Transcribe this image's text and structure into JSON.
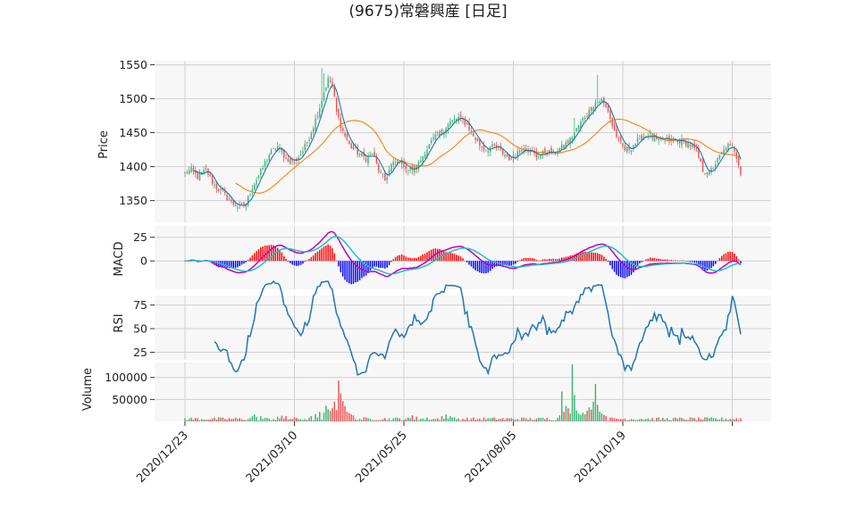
{
  "chart_data": {
    "type": "candlestick",
    "title": "(9675)常磐興産 [日足]",
    "x_tick_labels": [
      "2020/12/23",
      "2021/03/10",
      "2021/05/25",
      "2021/08/05",
      "2021/10/19"
    ],
    "colors": {
      "up": "#3cb371",
      "down": "#ef5350",
      "ma_short": "#1f77b4",
      "ma_long": "#ff7f0e",
      "macd": "#c000c0",
      "signal": "#20c0c0",
      "hist_pos": "#ff0000",
      "hist_neg": "#0000ff",
      "rsi": "#1f77b4",
      "panel_bg": "#f7f7f7",
      "grid": "#d0d0d0"
    },
    "panels": {
      "price": {
        "ylabel": "Price",
        "ylim": [
          1318,
          1556
        ],
        "yticks": [
          1350,
          1400,
          1450,
          1500,
          1550
        ],
        "ma_short_series": "5-day moving average",
        "ma_long_series": "25-day moving average",
        "keypoints": [
          [
            0,
            1390
          ],
          [
            3,
            1395
          ],
          [
            6,
            1385
          ],
          [
            10,
            1395
          ],
          [
            14,
            1372
          ],
          [
            18,
            1362
          ],
          [
            22,
            1347
          ],
          [
            26,
            1340
          ],
          [
            29,
            1346
          ],
          [
            32,
            1370
          ],
          [
            36,
            1392
          ],
          [
            40,
            1418
          ],
          [
            44,
            1430
          ],
          [
            48,
            1412
          ],
          [
            52,
            1408
          ],
          [
            55,
            1418
          ],
          [
            58,
            1435
          ],
          [
            61,
            1460
          ],
          [
            64,
            1488
          ],
          [
            66,
            1510
          ],
          [
            68,
            1528
          ],
          [
            70,
            1520
          ],
          [
            72,
            1480
          ],
          [
            75,
            1452
          ],
          [
            78,
            1432
          ],
          [
            82,
            1420
          ],
          [
            86,
            1412
          ],
          [
            89,
            1420
          ],
          [
            92,
            1395
          ],
          [
            95,
            1380
          ],
          [
            98,
            1402
          ],
          [
            102,
            1410
          ],
          [
            106,
            1395
          ],
          [
            110,
            1398
          ],
          [
            114,
            1422
          ],
          [
            118,
            1440
          ],
          [
            122,
            1452
          ],
          [
            126,
            1465
          ],
          [
            130,
            1472
          ],
          [
            134,
            1462
          ],
          [
            137,
            1445
          ],
          [
            140,
            1432
          ],
          [
            143,
            1425
          ],
          [
            147,
            1430
          ],
          [
            151,
            1420
          ],
          [
            155,
            1410
          ],
          [
            158,
            1422
          ],
          [
            161,
            1430
          ],
          [
            164,
            1422
          ],
          [
            167,
            1415
          ],
          [
            171,
            1422
          ],
          [
            175,
            1420
          ],
          [
            179,
            1428
          ],
          [
            183,
            1440
          ],
          [
            186,
            1455
          ],
          [
            189,
            1470
          ],
          [
            192,
            1482
          ],
          [
            195,
            1495
          ],
          [
            198,
            1498
          ],
          [
            201,
            1482
          ],
          [
            203,
            1460
          ],
          [
            206,
            1438
          ],
          [
            209,
            1425
          ],
          [
            212,
            1428
          ],
          [
            216,
            1442
          ],
          [
            220,
            1448
          ],
          [
            224,
            1438
          ],
          [
            228,
            1440
          ],
          [
            232,
            1438
          ],
          [
            236,
            1438
          ],
          [
            240,
            1432
          ],
          [
            243,
            1422
          ],
          [
            246,
            1395
          ],
          [
            249,
            1390
          ],
          [
            252,
            1405
          ],
          [
            255,
            1420
          ],
          [
            258,
            1430
          ],
          [
            261,
            1425
          ],
          [
            263,
            1406
          ],
          [
            264,
            1390
          ]
        ],
        "highlights": [
          {
            "i": 65,
            "h": 1545
          },
          {
            "i": 66,
            "h": 1538
          },
          {
            "i": 185,
            "h": 1472
          },
          {
            "i": 196,
            "h": 1535
          },
          {
            "i": 256,
            "h": 1432
          }
        ]
      },
      "macd": {
        "ylabel": "MACD",
        "ylim": [
          -30,
          37
        ],
        "yticks": [
          0,
          25
        ]
      },
      "rsi": {
        "ylabel": "RSI",
        "ylim": [
          17,
          85
        ],
        "yticks": [
          25,
          50,
          75
        ],
        "period": 14
      },
      "volume": {
        "ylabel": "Volume",
        "ylim": [
          0,
          134000
        ],
        "yticks": [
          50000,
          100000
        ],
        "baseline": 5000,
        "spikes": [
          {
            "i": 60,
            "v": 12000
          },
          {
            "i": 62,
            "v": 17000
          },
          {
            "i": 64,
            "v": 22000
          },
          {
            "i": 66,
            "v": 20000
          },
          {
            "i": 67,
            "v": 36000
          },
          {
            "i": 68,
            "v": 28000
          },
          {
            "i": 69,
            "v": 24000
          },
          {
            "i": 70,
            "v": 30000
          },
          {
            "i": 71,
            "v": 45000
          },
          {
            "i": 72,
            "v": 26000
          },
          {
            "i": 73,
            "v": 93000
          },
          {
            "i": 74,
            "v": 64000
          },
          {
            "i": 75,
            "v": 46000
          },
          {
            "i": 76,
            "v": 35000
          },
          {
            "i": 77,
            "v": 22000
          },
          {
            "i": 78,
            "v": 19000
          },
          {
            "i": 79,
            "v": 16000
          },
          {
            "i": 80,
            "v": 14000
          },
          {
            "i": 32,
            "v": 12000
          },
          {
            "i": 33,
            "v": 16000
          },
          {
            "i": 34,
            "v": 10000
          },
          {
            "i": 36,
            "v": 12000
          },
          {
            "i": 44,
            "v": 11000
          },
          {
            "i": 46,
            "v": 13000
          },
          {
            "i": 48,
            "v": 12000
          },
          {
            "i": 108,
            "v": 14000
          },
          {
            "i": 110,
            "v": 11000
          },
          {
            "i": 122,
            "v": 12000
          },
          {
            "i": 124,
            "v": 16000
          },
          {
            "i": 126,
            "v": 12000
          },
          {
            "i": 128,
            "v": 10000
          },
          {
            "i": 178,
            "v": 14000
          },
          {
            "i": 179,
            "v": 68000
          },
          {
            "i": 180,
            "v": 22000
          },
          {
            "i": 181,
            "v": 35000
          },
          {
            "i": 182,
            "v": 30000
          },
          {
            "i": 183,
            "v": 18000
          },
          {
            "i": 184,
            "v": 130000
          },
          {
            "i": 185,
            "v": 60000
          },
          {
            "i": 186,
            "v": 25000
          },
          {
            "i": 187,
            "v": 18000
          },
          {
            "i": 188,
            "v": 15000
          },
          {
            "i": 189,
            "v": 20000
          },
          {
            "i": 190,
            "v": 16000
          },
          {
            "i": 191,
            "v": 24000
          },
          {
            "i": 192,
            "v": 32000
          },
          {
            "i": 193,
            "v": 27000
          },
          {
            "i": 194,
            "v": 45000
          },
          {
            "i": 195,
            "v": 85000
          },
          {
            "i": 196,
            "v": 38000
          },
          {
            "i": 197,
            "v": 22000
          },
          {
            "i": 198,
            "v": 18000
          },
          {
            "i": 199,
            "v": 15000
          },
          {
            "i": 200,
            "v": 12000
          }
        ]
      }
    },
    "n_days": 265
  }
}
